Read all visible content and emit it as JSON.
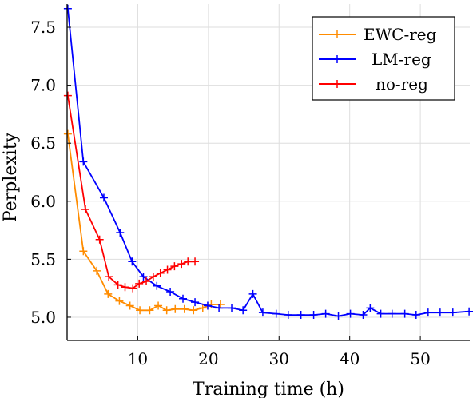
{
  "chart_data": {
    "type": "line",
    "xlabel": "Training time (h)",
    "ylabel": "Perplexity",
    "xlim": [
      0,
      57
    ],
    "ylim": [
      4.8,
      7.7
    ],
    "xticks": [
      10,
      20,
      30,
      40,
      50
    ],
    "yticks": [
      5.0,
      5.5,
      6.0,
      6.5,
      7.0,
      7.5
    ],
    "ytick_labels": [
      "5.0",
      "5.5",
      "6.0",
      "6.5",
      "7.0",
      "7.5"
    ],
    "grid": true,
    "legend_position": "top-right",
    "series": [
      {
        "name": "EWC-reg",
        "color": "#ff8c00",
        "x": [
          0.1,
          2.3,
          4.2,
          5.8,
          7.4,
          8.9,
          10.3,
          11.7,
          12.9,
          14.1,
          15.3,
          16.6,
          17.9,
          19.2,
          20.4,
          21.7
        ],
        "y": [
          6.58,
          5.57,
          5.4,
          5.2,
          5.14,
          5.1,
          5.06,
          5.06,
          5.1,
          5.06,
          5.07,
          5.07,
          5.06,
          5.08,
          5.11,
          5.11
        ]
      },
      {
        "name": "LM-reg",
        "color": "#0000ff",
        "x": [
          0.1,
          2.3,
          5.2,
          7.5,
          9.2,
          10.8,
          12.7,
          14.6,
          16.4,
          18.1,
          19.9,
          21.5,
          23.3,
          24.9,
          26.3,
          27.7,
          29.6,
          31.3,
          33.1,
          34.9,
          36.6,
          38.4,
          40.1,
          41.9,
          42.9,
          44.4,
          46.0,
          47.8,
          49.4,
          51.1,
          52.8,
          54.6,
          56.9
        ],
        "y": [
          7.66,
          6.34,
          6.03,
          5.73,
          5.48,
          5.35,
          5.27,
          5.22,
          5.16,
          5.13,
          5.1,
          5.08,
          5.08,
          5.06,
          5.2,
          5.04,
          5.03,
          5.02,
          5.02,
          5.02,
          5.03,
          5.01,
          5.03,
          5.02,
          5.08,
          5.03,
          5.03,
          5.03,
          5.02,
          5.04,
          5.04,
          5.04,
          5.05
        ]
      },
      {
        "name": "no-reg",
        "color": "#ff0000",
        "x": [
          0.1,
          2.6,
          4.6,
          5.9,
          7.2,
          8.2,
          9.3,
          10.2,
          11.2,
          12.2,
          13.2,
          14.2,
          15.2,
          16.2,
          17.1,
          18.1
        ],
        "y": [
          6.91,
          5.93,
          5.67,
          5.35,
          5.28,
          5.26,
          5.25,
          5.29,
          5.31,
          5.35,
          5.38,
          5.41,
          5.44,
          5.46,
          5.48,
          5.48
        ]
      }
    ]
  }
}
